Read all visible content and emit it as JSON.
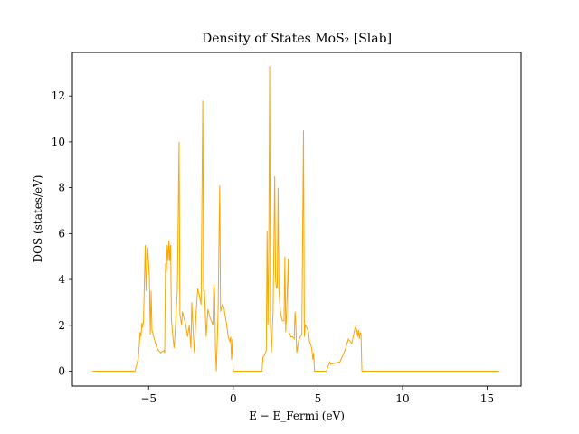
{
  "chart_data": {
    "type": "line",
    "title": "Density of States MoS₂ [Slab]",
    "xlabel": "E − E_Fermi (eV)",
    "ylabel": "DOS (states/eV)",
    "xlim": [
      -9.5,
      17.0
    ],
    "ylim": [
      -0.65,
      13.9
    ],
    "xticks": [
      -5,
      0,
      5,
      10,
      15
    ],
    "yticks": [
      0,
      2,
      4,
      6,
      8,
      10,
      12
    ],
    "grid": false,
    "legend": "none",
    "line_color": "#FFA500",
    "series": [
      {
        "points": [
          [
            -8.3,
            0.0
          ],
          [
            -5.8,
            0.0
          ],
          [
            -5.6,
            0.6
          ],
          [
            -5.5,
            1.7
          ],
          [
            -5.45,
            1.5
          ],
          [
            -5.4,
            2.1
          ],
          [
            -5.35,
            1.9
          ],
          [
            -5.3,
            2.2
          ],
          [
            -5.2,
            5.5
          ],
          [
            -5.15,
            3.5
          ],
          [
            -5.05,
            5.4
          ],
          [
            -4.95,
            4.0
          ],
          [
            -4.9,
            1.6
          ],
          [
            -4.85,
            3.5
          ],
          [
            -4.8,
            1.8
          ],
          [
            -4.7,
            1.5
          ],
          [
            -4.5,
            1.0
          ],
          [
            -4.3,
            0.8
          ],
          [
            -4.1,
            0.9
          ],
          [
            -4.05,
            0.8
          ],
          [
            -4.0,
            4.7
          ],
          [
            -3.95,
            4.3
          ],
          [
            -3.9,
            5.5
          ],
          [
            -3.85,
            4.8
          ],
          [
            -3.8,
            5.7
          ],
          [
            -3.75,
            4.8
          ],
          [
            -3.7,
            5.5
          ],
          [
            -3.65,
            2.2
          ],
          [
            -3.6,
            1.8
          ],
          [
            -3.5,
            1.0
          ],
          [
            -3.45,
            1.5
          ],
          [
            -3.3,
            3.6
          ],
          [
            -3.2,
            10.0
          ],
          [
            -3.15,
            2.5
          ],
          [
            -3.05,
            2.0
          ],
          [
            -3.0,
            2.6
          ],
          [
            -2.9,
            2.3
          ],
          [
            -2.8,
            2.0
          ],
          [
            -2.7,
            1.5
          ],
          [
            -2.6,
            2.0
          ],
          [
            -2.5,
            1.0
          ],
          [
            -2.45,
            3.0
          ],
          [
            -2.4,
            2.2
          ],
          [
            -2.3,
            0.8
          ],
          [
            -2.2,
            2.5
          ],
          [
            -2.1,
            3.6
          ],
          [
            -2.0,
            3.3
          ],
          [
            -1.9,
            2.9
          ],
          [
            -1.8,
            11.8
          ],
          [
            -1.75,
            3.5
          ],
          [
            -1.7,
            3.5
          ],
          [
            -1.6,
            1.5
          ],
          [
            -1.5,
            2.7
          ],
          [
            -1.4,
            2.4
          ],
          [
            -1.3,
            2.2
          ],
          [
            -1.2,
            2.0
          ],
          [
            -1.15,
            3.8
          ],
          [
            -1.1,
            3.4
          ],
          [
            -1.05,
            1.0
          ],
          [
            -1.0,
            0.0
          ],
          [
            -0.95,
            1.2
          ],
          [
            -0.9,
            2.5
          ],
          [
            -0.8,
            8.1
          ],
          [
            -0.75,
            2.6
          ],
          [
            -0.65,
            2.9
          ],
          [
            -0.55,
            2.8
          ],
          [
            -0.5,
            2.5
          ],
          [
            -0.4,
            2.1
          ],
          [
            -0.3,
            1.5
          ],
          [
            -0.2,
            1.3
          ],
          [
            -0.15,
            1.5
          ],
          [
            -0.1,
            0.5
          ],
          [
            -0.05,
            1.4
          ],
          [
            0.0,
            0.0
          ],
          [
            1.7,
            0.0
          ],
          [
            1.75,
            0.6
          ],
          [
            1.85,
            0.7
          ],
          [
            1.95,
            0.9
          ],
          [
            2.0,
            6.1
          ],
          [
            2.05,
            2.0
          ],
          [
            2.1,
            5.5
          ],
          [
            2.15,
            13.3
          ],
          [
            2.2,
            2.0
          ],
          [
            2.25,
            0.8
          ],
          [
            2.35,
            2.5
          ],
          [
            2.45,
            8.5
          ],
          [
            2.5,
            4.0
          ],
          [
            2.55,
            3.6
          ],
          [
            2.6,
            3.7
          ],
          [
            2.65,
            8.0
          ],
          [
            2.7,
            3.5
          ],
          [
            2.8,
            2.5
          ],
          [
            2.9,
            2.2
          ],
          [
            3.0,
            2.2
          ],
          [
            3.05,
            5.0
          ],
          [
            3.1,
            1.7
          ],
          [
            3.15,
            2.5
          ],
          [
            3.25,
            4.9
          ],
          [
            3.3,
            1.7
          ],
          [
            3.4,
            1.5
          ],
          [
            3.5,
            1.5
          ],
          [
            3.6,
            1.4
          ],
          [
            3.65,
            2.6
          ],
          [
            3.7,
            2.0
          ],
          [
            3.75,
            0.8
          ],
          [
            3.85,
            1.3
          ],
          [
            3.95,
            1.5
          ],
          [
            4.05,
            1.6
          ],
          [
            4.15,
            10.5
          ],
          [
            4.2,
            1.5
          ],
          [
            4.25,
            2.0
          ],
          [
            4.35,
            1.9
          ],
          [
            4.45,
            1.7
          ],
          [
            4.5,
            1.3
          ],
          [
            4.6,
            1.1
          ],
          [
            4.65,
            0.9
          ],
          [
            4.7,
            0.5
          ],
          [
            4.75,
            0.8
          ],
          [
            4.8,
            0.0
          ],
          [
            5.5,
            0.0
          ],
          [
            5.7,
            0.4
          ],
          [
            5.75,
            0.3
          ],
          [
            6.0,
            0.35
          ],
          [
            6.3,
            0.4
          ],
          [
            6.6,
            0.9
          ],
          [
            6.8,
            1.4
          ],
          [
            7.0,
            1.2
          ],
          [
            7.2,
            1.9
          ],
          [
            7.3,
            1.8
          ],
          [
            7.35,
            1.5
          ],
          [
            7.4,
            1.8
          ],
          [
            7.45,
            1.4
          ],
          [
            7.5,
            1.7
          ],
          [
            7.55,
            1.6
          ],
          [
            7.6,
            0.0
          ],
          [
            15.7,
            0.0
          ]
        ]
      }
    ]
  }
}
